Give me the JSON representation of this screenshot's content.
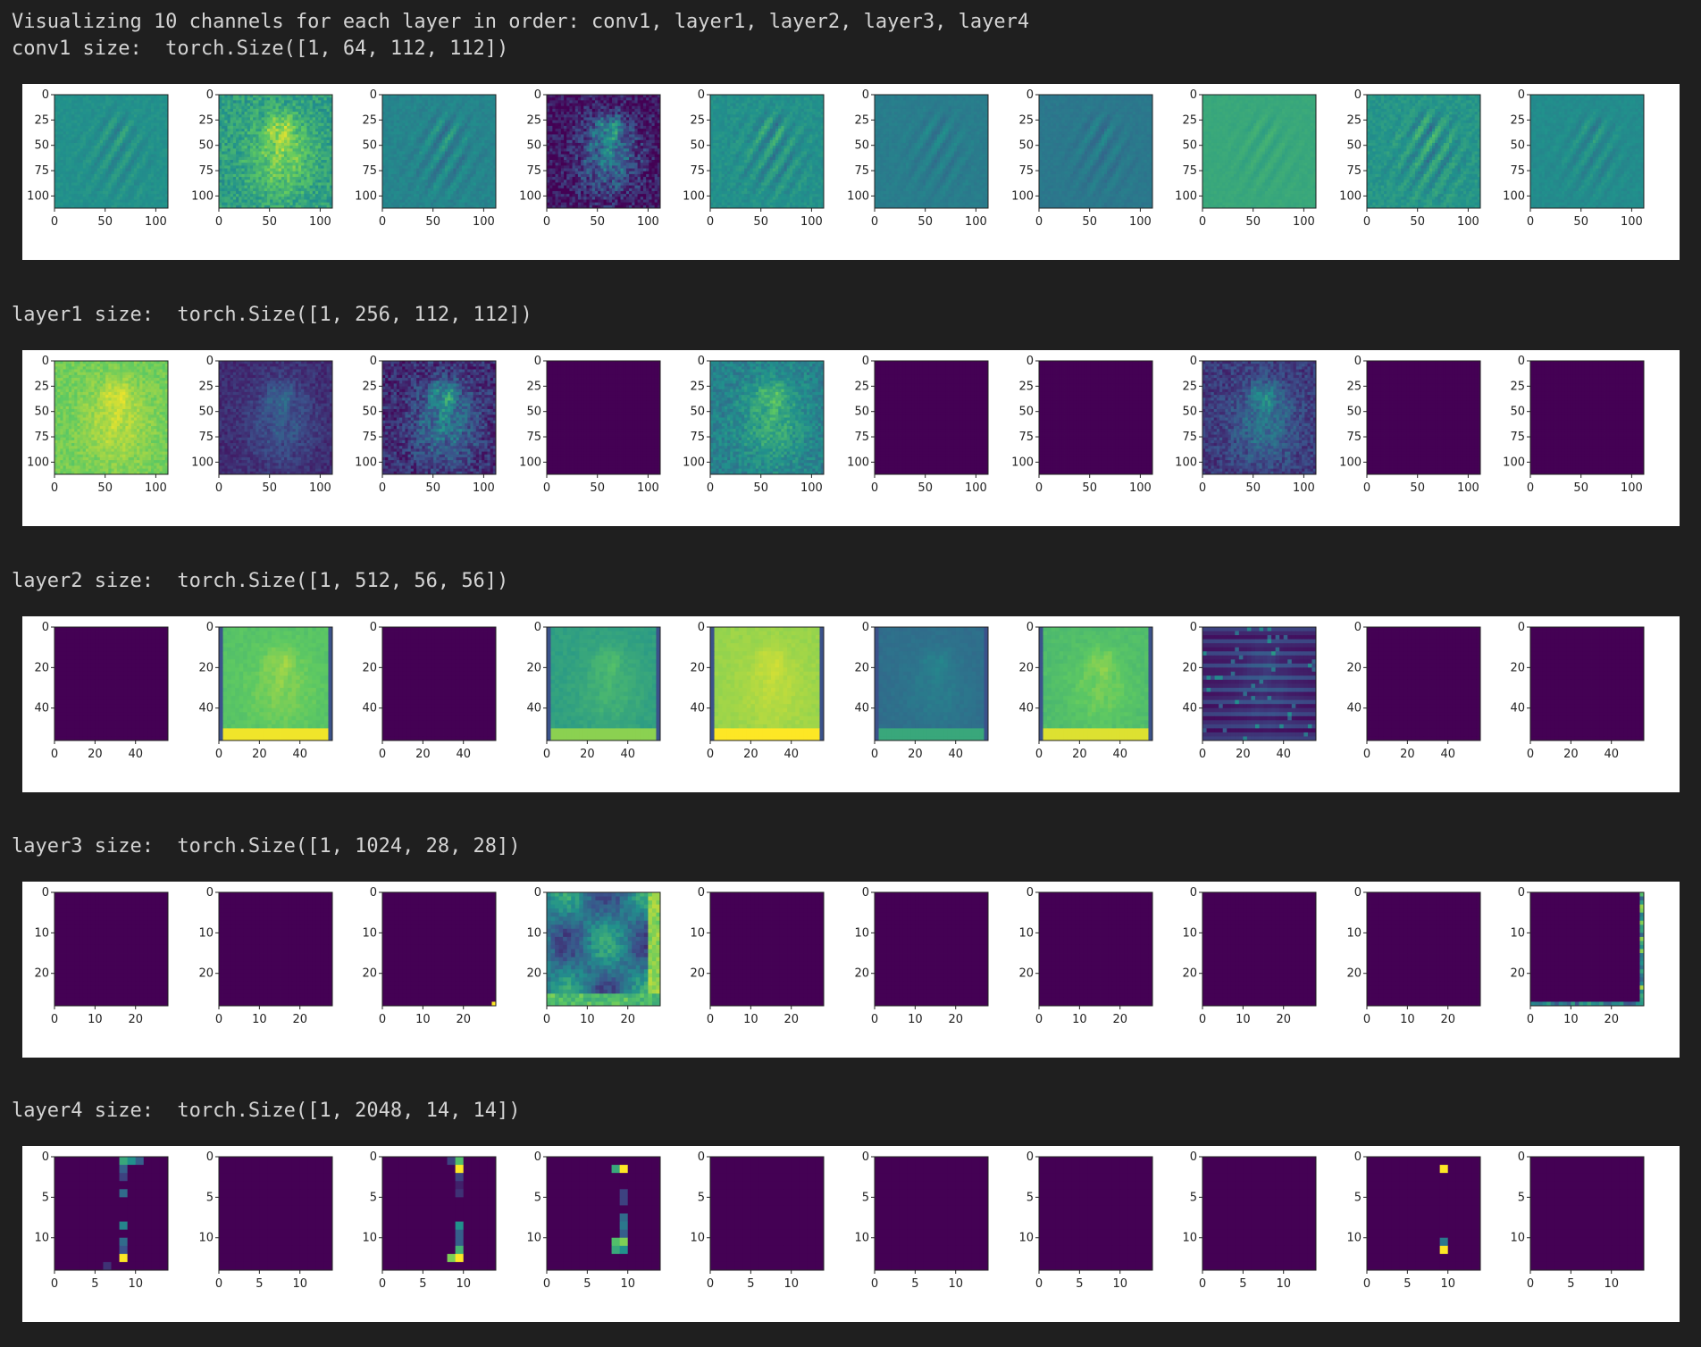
{
  "header": {
    "line1": "Visualizing 10 channels for each layer in order: conv1, layer1, layer2, layer3, layer4"
  },
  "colormap": "viridis",
  "colors": {
    "background": "#1f1f1f",
    "text": "#d4d4d4",
    "figure": "#ffffff",
    "viridis_low": "#440154",
    "viridis_mid": "#21918c",
    "viridis_high": "#fde725"
  },
  "layers": [
    {
      "size_text": "conv1 size:  torch.Size([1, 64, 112, 112])",
      "ticks": [
        "0",
        "25",
        "50",
        "75",
        "100"
      ],
      "xticks": [
        "0",
        "50",
        "100"
      ],
      "channels": [
        {
          "pattern": "edges",
          "base": 0.5,
          "contrast": 0.08
        },
        {
          "pattern": "image",
          "base": 0.7,
          "contrast": 0.25
        },
        {
          "pattern": "edges",
          "base": 0.45,
          "contrast": 0.1
        },
        {
          "pattern": "image",
          "base": 0.25,
          "contrast": 0.35
        },
        {
          "pattern": "edges",
          "base": 0.5,
          "contrast": 0.12
        },
        {
          "pattern": "edges",
          "base": 0.42,
          "contrast": 0.06
        },
        {
          "pattern": "edges",
          "base": 0.4,
          "contrast": 0.06
        },
        {
          "pattern": "edges",
          "base": 0.6,
          "contrast": 0.04
        },
        {
          "pattern": "edges",
          "base": 0.52,
          "contrast": 0.14
        },
        {
          "pattern": "edges",
          "base": 0.48,
          "contrast": 0.07
        }
      ]
    },
    {
      "size_text": "layer1 size:  torch.Size([1, 256, 112, 112])",
      "ticks": [
        "0",
        "25",
        "50",
        "75",
        "100"
      ],
      "xticks": [
        "0",
        "50",
        "100"
      ],
      "channels": [
        {
          "pattern": "image",
          "base": 0.85,
          "contrast": 0.12
        },
        {
          "pattern": "image",
          "base": 0.22,
          "contrast": 0.15
        },
        {
          "pattern": "image",
          "base": 0.3,
          "contrast": 0.3
        },
        {
          "pattern": "flat",
          "base": 0.0,
          "contrast": 0
        },
        {
          "pattern": "image",
          "base": 0.55,
          "contrast": 0.2
        },
        {
          "pattern": "flat",
          "base": 0.0,
          "contrast": 0
        },
        {
          "pattern": "flat",
          "base": 0.0,
          "contrast": 0
        },
        {
          "pattern": "image",
          "base": 0.3,
          "contrast": 0.22
        },
        {
          "pattern": "flat",
          "base": 0.0,
          "contrast": 0
        },
        {
          "pattern": "flat",
          "base": 0.0,
          "contrast": 0
        }
      ]
    },
    {
      "size_text": "layer2 size:  torch.Size([1, 512, 56, 56])",
      "ticks": [
        "0",
        "20",
        "40"
      ],
      "xticks": [
        "0",
        "20",
        "40"
      ],
      "channels": [
        {
          "pattern": "flat",
          "base": 0.0,
          "contrast": 0
        },
        {
          "pattern": "blur",
          "base": 0.78,
          "contrast": 0.12
        },
        {
          "pattern": "flat",
          "base": 0.0,
          "contrast": 0
        },
        {
          "pattern": "blur",
          "base": 0.62,
          "contrast": 0.12
        },
        {
          "pattern": "blur",
          "base": 0.88,
          "contrast": 0.08
        },
        {
          "pattern": "blur",
          "base": 0.4,
          "contrast": 0.08
        },
        {
          "pattern": "blur",
          "base": 0.75,
          "contrast": 0.12
        },
        {
          "pattern": "stripes",
          "base": 0.12,
          "contrast": 0.12
        },
        {
          "pattern": "flat",
          "base": 0.0,
          "contrast": 0
        },
        {
          "pattern": "flat",
          "base": 0.0,
          "contrast": 0
        }
      ]
    },
    {
      "size_text": "layer3 size:  torch.Size([1, 1024, 28, 28])",
      "ticks": [
        "0",
        "10",
        "20"
      ],
      "xticks": [
        "0",
        "10",
        "20"
      ],
      "channels": [
        {
          "pattern": "flat",
          "base": 0.0,
          "contrast": 0
        },
        {
          "pattern": "flat",
          "base": 0.0,
          "contrast": 0
        },
        {
          "pattern": "corner",
          "base": 0.0,
          "contrast": 0
        },
        {
          "pattern": "blocky",
          "base": 0.4,
          "contrast": 0.15
        },
        {
          "pattern": "flat",
          "base": 0.0,
          "contrast": 0
        },
        {
          "pattern": "flat",
          "base": 0.0,
          "contrast": 0
        },
        {
          "pattern": "flat",
          "base": 0.0,
          "contrast": 0
        },
        {
          "pattern": "flat",
          "base": 0.0,
          "contrast": 0
        },
        {
          "pattern": "flat",
          "base": 0.0,
          "contrast": 0
        },
        {
          "pattern": "border",
          "base": 0.0,
          "contrast": 0
        }
      ]
    },
    {
      "size_text": "layer4 size:  torch.Size([1, 2048, 14, 14])",
      "ticks": [
        "0",
        "5",
        "10"
      ],
      "xticks": [
        "0",
        "5",
        "10"
      ],
      "channels": [
        {
          "pattern": "sparse1",
          "base": 0.0,
          "contrast": 0
        },
        {
          "pattern": "flat",
          "base": 0.0,
          "contrast": 0
        },
        {
          "pattern": "sparse2",
          "base": 0.0,
          "contrast": 0
        },
        {
          "pattern": "sparse3",
          "base": 0.0,
          "contrast": 0
        },
        {
          "pattern": "flat",
          "base": 0.0,
          "contrast": 0
        },
        {
          "pattern": "flat",
          "base": 0.0,
          "contrast": 0
        },
        {
          "pattern": "flat",
          "base": 0.0,
          "contrast": 0
        },
        {
          "pattern": "flat",
          "base": 0.0,
          "contrast": 0
        },
        {
          "pattern": "sparse4",
          "base": 0.0,
          "contrast": 0
        },
        {
          "pattern": "flat",
          "base": 0.0,
          "contrast": 0
        }
      ]
    }
  ]
}
